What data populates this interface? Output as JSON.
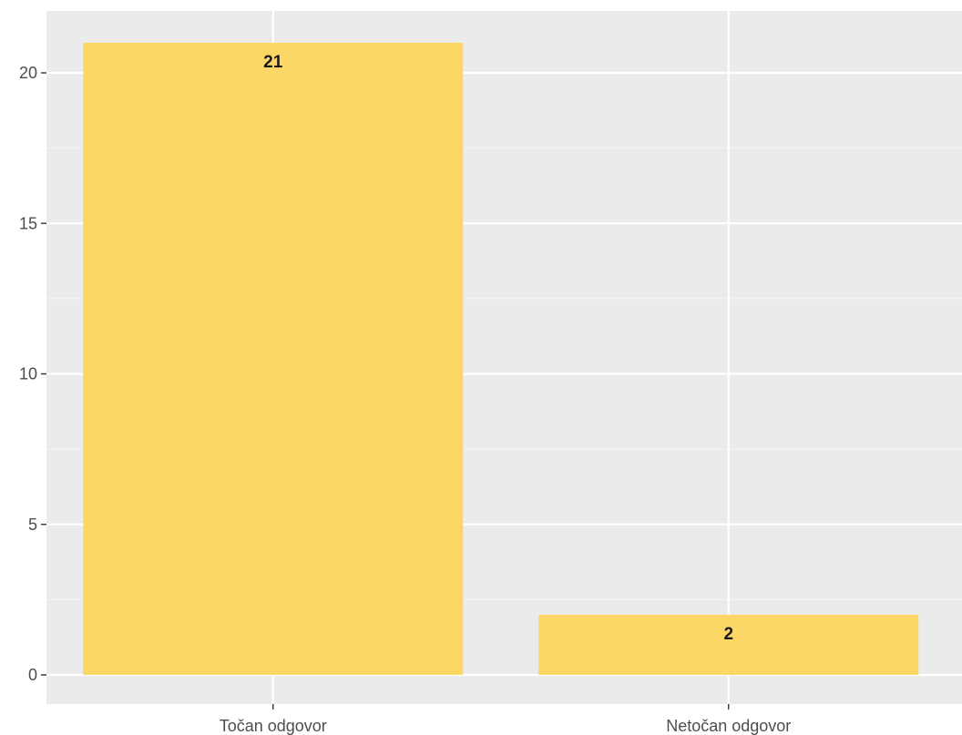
{
  "chart_data": {
    "type": "bar",
    "categories": [
      "Točan odgovor",
      "Netočan odgovor"
    ],
    "values": [
      21,
      2
    ],
    "data_labels": [
      "21",
      "2"
    ],
    "title": "",
    "xlabel": "",
    "ylabel": "",
    "ylim": [
      0,
      22
    ],
    "y_ticks": [
      0,
      5,
      10,
      15,
      20
    ],
    "y_tick_labels": [
      "0",
      "5",
      "10",
      "15",
      "20"
    ],
    "grid": true,
    "legend": "none",
    "colors": {
      "bar": "#FDD766",
      "panel": "#EBEBEB",
      "grid_major": "#FFFFFF",
      "grid_minor": "#F5F5F5",
      "tick_text": "#4D4D4D",
      "label_text": "#1A1A1A"
    }
  }
}
